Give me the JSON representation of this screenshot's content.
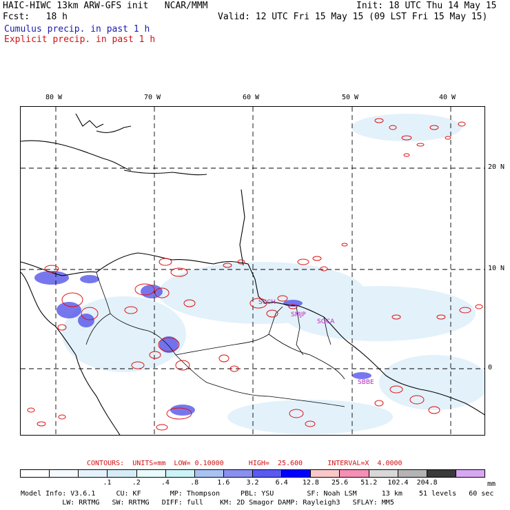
{
  "header": {
    "title": "HAIC-HIWC 13km ARW-GFS init   NCAR/MMM",
    "fcst": "Fcst:   18 h",
    "init": "Init: 18 UTC Thu 14 May 15",
    "valid": "Valid: 12 UTC Fri 15 May 15 (09 LST Fri 15 May 15)",
    "legend_cumulus": "Cumulus precip. in past 1 h",
    "legend_explicit": "Explicit precip. in past 1 h"
  },
  "map": {
    "lon_labels": [
      "80 W",
      "70 W",
      "60 W",
      "50 W",
      "40 W"
    ],
    "lat_labels": [
      "20 N",
      "10 N",
      "0"
    ],
    "stations": [
      "SCCH",
      "SMJP",
      "SOCA",
      "SBBE"
    ],
    "colors": {
      "cumulus": "#1a1aa8",
      "explicit": "#d01010"
    }
  },
  "contours": {
    "text": "CONTOURS:  UNITS=mm  LOW= 0.10000      HIGH=  25.600      INTERVAL=X  4.0000"
  },
  "colorbar": {
    "colors": [
      "#ffffff",
      "#f5faff",
      "#e6f2fb",
      "#d6ecf7",
      "#e9fbfb",
      "#ccf4f8",
      "#a9c2f2",
      "#8a90ef",
      "#5a5af2",
      "#0000ff",
      "#f9c8c8",
      "#f58fb5",
      "#d8d8d8",
      "#b4b4b4",
      "#3a3a3a",
      "#d7a8f2"
    ],
    "labels": [
      ".1",
      ".2",
      ".4",
      ".8",
      "1.6",
      "3.2",
      "6.4",
      "12.8",
      "25.6",
      "51.2",
      "102.4",
      "204.8"
    ],
    "unit": "mm"
  },
  "model_info": {
    "line1": "Model Info: V3.6.1     CU: KF       MP: Thompson     PBL: YSU        SF: Noah LSM      13 km    51 levels   60 sec",
    "line2": "          LW: RRTMG   SW: RRTMG   DIFF: full    KM: 2D Smagor DAMP: Rayleigh3   SFLAY: MM5"
  }
}
